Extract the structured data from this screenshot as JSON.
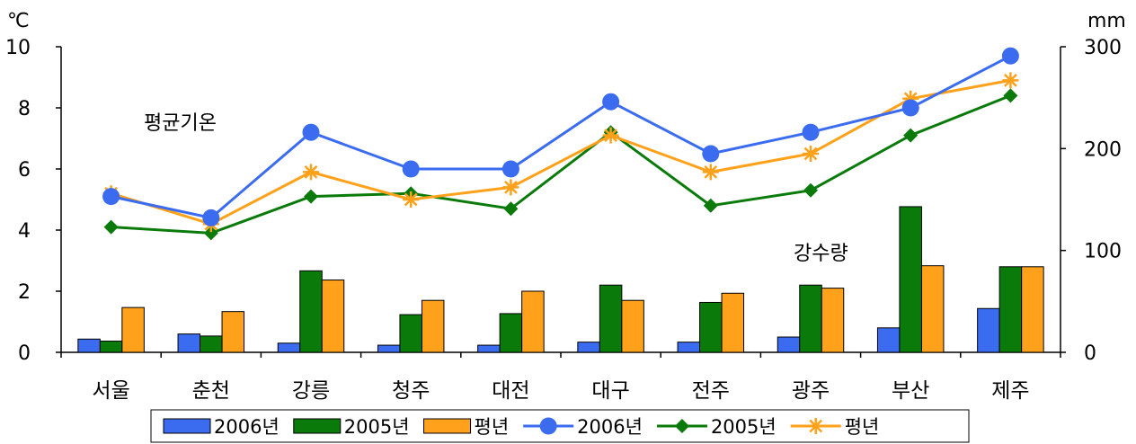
{
  "chart_data": {
    "type": "bar+line",
    "categories": [
      "서울",
      "춘천",
      "강릉",
      "청주",
      "대전",
      "대구",
      "전주",
      "광주",
      "부산",
      "제주"
    ],
    "y_left": {
      "unit": "℃",
      "ylim": [
        0,
        10
      ],
      "ticks": [
        "0",
        "2",
        "4",
        "6",
        "8",
        "10"
      ]
    },
    "y_right": {
      "unit": "mm",
      "ylim": [
        0,
        300
      ],
      "ticks": [
        "0",
        "100",
        "200",
        "300"
      ]
    },
    "bar_series": [
      {
        "name": "2006년",
        "color": "#3b6cf0",
        "values": [
          13,
          18,
          9,
          7,
          7,
          10,
          10,
          15,
          24,
          43
        ]
      },
      {
        "name": "2005년",
        "color": "#0a7a0a",
        "values": [
          11,
          16,
          80,
          37,
          38,
          66,
          49,
          66,
          143,
          84
        ]
      },
      {
        "name": "평년",
        "color": "#ffa11a",
        "values": [
          44,
          40,
          71,
          51,
          60,
          51,
          58,
          63,
          85,
          84
        ]
      }
    ],
    "line_series": [
      {
        "name": "2006년",
        "color": "#3b6cf0",
        "marker": "circle",
        "values": [
          5.1,
          4.4,
          7.2,
          6.0,
          6.0,
          8.2,
          6.5,
          7.2,
          8.0,
          9.7
        ]
      },
      {
        "name": "2005년",
        "color": "#0a7a0a",
        "marker": "diamond",
        "values": [
          4.1,
          3.9,
          5.1,
          5.2,
          4.7,
          7.2,
          4.8,
          5.3,
          7.1,
          8.4
        ]
      },
      {
        "name": "평년",
        "color": "#ffa11a",
        "marker": "star",
        "values": [
          5.2,
          4.2,
          5.9,
          5.0,
          5.4,
          7.1,
          5.9,
          6.5,
          8.3,
          8.9
        ]
      }
    ],
    "annotations": {
      "temperature": "평균기온",
      "precipitation": "강수량"
    },
    "legend": {
      "placement": "bottom"
    }
  }
}
